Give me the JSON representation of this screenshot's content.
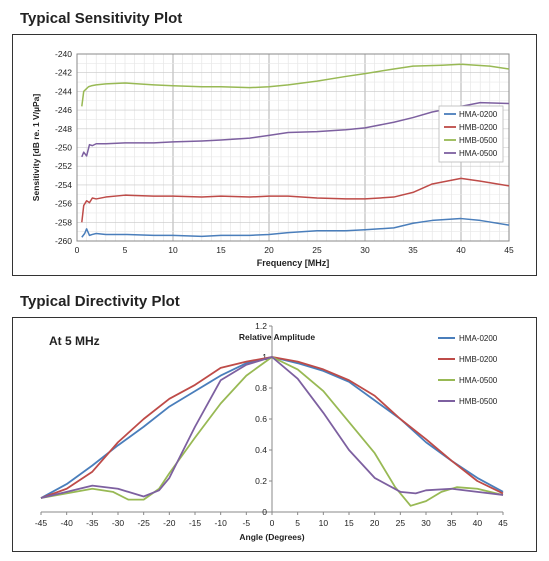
{
  "sensitivity_title": "Typical Sensitivity Plot",
  "directivity_title": "Typical Directivity Plot",
  "chart_data": [
    {
      "type": "line",
      "xlabel": "Frequency [MHz]",
      "ylabel": "Sensitivity [dB re. 1 V/µPa]",
      "xlim": [
        0,
        45
      ],
      "ylim": [
        -260,
        -240
      ],
      "xticks": [
        0,
        5,
        10,
        15,
        20,
        25,
        30,
        35,
        40,
        45
      ],
      "yticks": [
        -240,
        -242,
        -244,
        -246,
        -248,
        -250,
        -252,
        -254,
        -256,
        -258,
        -260
      ],
      "grid": true,
      "legend_position": "right",
      "series": [
        {
          "name": "HMA-0200",
          "color": "#4a7ebb",
          "x": [
            0.5,
            0.8,
            1,
            1.3,
            1.6,
            2,
            3,
            5,
            8,
            10,
            13,
            15,
            18,
            20,
            22,
            25,
            28,
            30,
            33,
            35,
            37,
            40,
            42,
            45
          ],
          "y": [
            -259.6,
            -259.2,
            -258.7,
            -259.4,
            -259.3,
            -259.2,
            -259.3,
            -259.3,
            -259.4,
            -259.4,
            -259.5,
            -259.4,
            -259.4,
            -259.3,
            -259.1,
            -258.9,
            -258.9,
            -258.8,
            -258.6,
            -258.1,
            -257.8,
            -257.6,
            -257.8,
            -258.3
          ]
        },
        {
          "name": "HMB-0200",
          "color": "#be4b48",
          "x": [
            0.5,
            0.7,
            1,
            1.3,
            1.6,
            2,
            3,
            5,
            8,
            10,
            13,
            15,
            18,
            20,
            22,
            25,
            28,
            30,
            33,
            35,
            37,
            40,
            42,
            45
          ],
          "y": [
            -258.0,
            -256.2,
            -255.7,
            -255.9,
            -255.4,
            -255.5,
            -255.3,
            -255.1,
            -255.2,
            -255.2,
            -255.3,
            -255.2,
            -255.3,
            -255.2,
            -255.2,
            -255.4,
            -255.5,
            -255.5,
            -255.3,
            -254.8,
            -253.9,
            -253.3,
            -253.6,
            -254.1
          ]
        },
        {
          "name": "HMB-0500",
          "color": "#98b954",
          "x": [
            0.5,
            0.7,
            1,
            1.2,
            1.5,
            2,
            3,
            5,
            8,
            10,
            13,
            15,
            18,
            20,
            22,
            25,
            28,
            30,
            33,
            35,
            38,
            40,
            43,
            45
          ],
          "y": [
            -245.6,
            -244.0,
            -243.7,
            -243.5,
            -243.4,
            -243.3,
            -243.2,
            -243.1,
            -243.3,
            -243.4,
            -243.5,
            -243.5,
            -243.6,
            -243.5,
            -243.3,
            -242.9,
            -242.4,
            -242.1,
            -241.6,
            -241.3,
            -241.2,
            -241.1,
            -241.3,
            -241.6
          ]
        },
        {
          "name": "HMA-0500",
          "color": "#7d60a0",
          "x": [
            0.5,
            0.7,
            1,
            1.3,
            1.6,
            2,
            3,
            5,
            8,
            10,
            13,
            15,
            18,
            20,
            22,
            25,
            28,
            30,
            33,
            35,
            37,
            40,
            42,
            45
          ],
          "y": [
            -251.0,
            -250.5,
            -250.9,
            -249.7,
            -249.8,
            -249.6,
            -249.6,
            -249.5,
            -249.5,
            -249.4,
            -249.3,
            -249.2,
            -249.0,
            -248.7,
            -248.4,
            -248.3,
            -248.1,
            -247.9,
            -247.3,
            -246.8,
            -246.2,
            -245.6,
            -245.2,
            -245.3
          ]
        }
      ]
    },
    {
      "type": "line",
      "annotation": "At 5 MHz",
      "xlabel": "Angle (Degrees)",
      "ylabel": "Relative Amplitude",
      "xlim": [
        -45,
        45
      ],
      "ylim": [
        0,
        1.2
      ],
      "xticks": [
        -45,
        -40,
        -35,
        -30,
        -25,
        -20,
        -15,
        -10,
        -5,
        0,
        5,
        10,
        15,
        20,
        25,
        30,
        35,
        40,
        45
      ],
      "yticks": [
        0,
        0.2,
        0.4,
        0.6,
        0.8,
        1,
        1.2
      ],
      "grid": false,
      "legend_position": "top-right",
      "series": [
        {
          "name": "HMA-0200",
          "color": "#4a7ebb",
          "x": [
            -45,
            -40,
            -35,
            -30,
            -25,
            -20,
            -15,
            -12,
            -10,
            -5,
            0,
            5,
            10,
            15,
            20,
            25,
            30,
            35,
            40,
            45
          ],
          "y": [
            0.09,
            0.18,
            0.3,
            0.43,
            0.55,
            0.68,
            0.78,
            0.84,
            0.88,
            0.96,
            1.0,
            0.96,
            0.91,
            0.84,
            0.72,
            0.6,
            0.45,
            0.33,
            0.22,
            0.13
          ]
        },
        {
          "name": "HMB-0200",
          "color": "#be4b48",
          "x": [
            -45,
            -40,
            -35,
            -30,
            -25,
            -20,
            -15,
            -10,
            -5,
            0,
            5,
            10,
            15,
            20,
            25,
            30,
            35,
            40,
            45
          ],
          "y": [
            0.09,
            0.15,
            0.26,
            0.45,
            0.6,
            0.73,
            0.82,
            0.93,
            0.97,
            1.0,
            0.97,
            0.92,
            0.85,
            0.75,
            0.6,
            0.47,
            0.33,
            0.2,
            0.12
          ]
        },
        {
          "name": "HMA-0500",
          "color": "#98b954",
          "x": [
            -45,
            -40,
            -35,
            -31,
            -28,
            -25,
            -22,
            -20,
            -15,
            -10,
            -5,
            0,
            5,
            10,
            15,
            20,
            24,
            27,
            30,
            33,
            36,
            40,
            45
          ],
          "y": [
            0.09,
            0.12,
            0.15,
            0.13,
            0.08,
            0.08,
            0.15,
            0.25,
            0.48,
            0.7,
            0.88,
            1.0,
            0.92,
            0.78,
            0.58,
            0.38,
            0.16,
            0.04,
            0.07,
            0.13,
            0.16,
            0.15,
            0.11
          ]
        },
        {
          "name": "HMB-0500",
          "color": "#7d60a0",
          "x": [
            -45,
            -40,
            -35,
            -30,
            -25,
            -22,
            -20,
            -15,
            -10,
            -5,
            0,
            5,
            10,
            15,
            20,
            25,
            28,
            30,
            35,
            40,
            45
          ],
          "y": [
            0.09,
            0.13,
            0.17,
            0.15,
            0.1,
            0.14,
            0.22,
            0.55,
            0.85,
            0.95,
            1.0,
            0.86,
            0.64,
            0.4,
            0.22,
            0.13,
            0.12,
            0.14,
            0.15,
            0.13,
            0.11
          ]
        }
      ]
    }
  ]
}
